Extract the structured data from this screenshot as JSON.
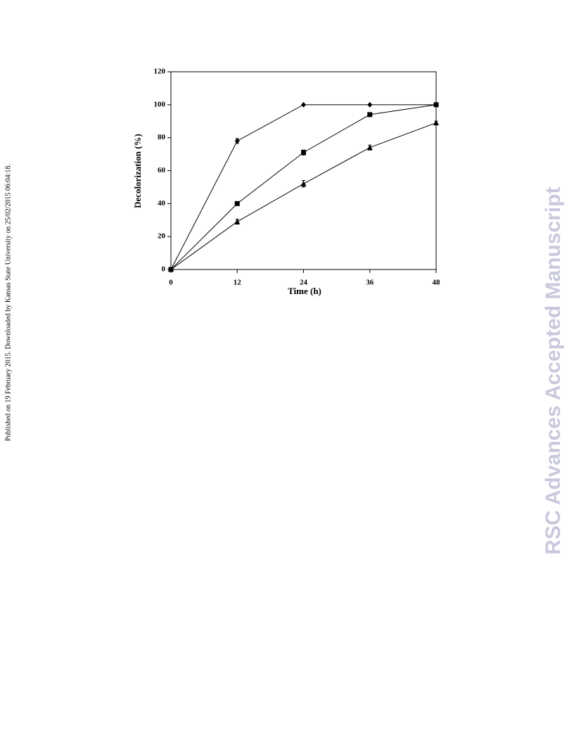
{
  "chart_data": {
    "type": "line",
    "xlabel": "Time (h)",
    "ylabel": "Decolorization (%)",
    "x": [
      0,
      12,
      24,
      36,
      48
    ],
    "series": [
      {
        "color": "#000000",
        "marker": "diamond",
        "values": [
          0,
          78,
          100,
          100,
          100
        ],
        "errors": [
          0,
          1.5,
          0,
          0,
          0
        ]
      },
      {
        "color": "#000000",
        "marker": "square",
        "values": [
          0,
          40,
          71,
          94,
          100
        ],
        "errors": [
          0,
          1,
          1.5,
          1,
          0
        ]
      },
      {
        "color": "#000000",
        "marker": "triangle",
        "values": [
          0,
          29,
          52,
          74,
          89
        ],
        "errors": [
          0,
          1.5,
          2,
          1.5,
          1
        ]
      }
    ],
    "xlim": [
      0,
      48
    ],
    "xticks": [
      0,
      12,
      24,
      36,
      48
    ],
    "ylim": [
      0,
      120
    ],
    "yticks": [
      0,
      20,
      40,
      60,
      80,
      100,
      120
    ]
  },
  "page": {
    "side_note": "Published on 19 February 2015. Downloaded by Kansas State University on 25/02/2015 06:04:18.",
    "watermark": "RSC Advances Accepted Manuscript"
  }
}
